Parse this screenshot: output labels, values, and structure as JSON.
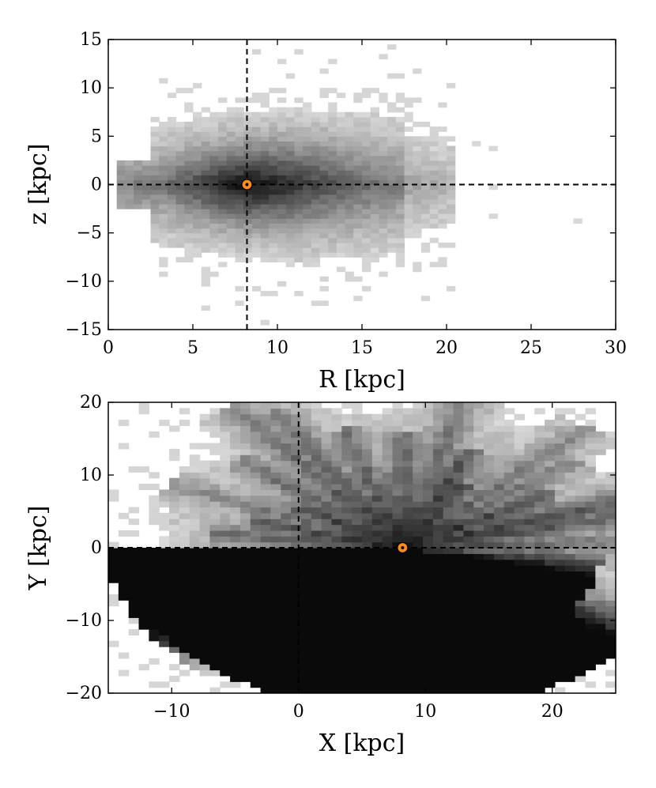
{
  "chart_data": [
    {
      "type": "heatmap",
      "title": "",
      "xlabel": "R [kpc]",
      "ylabel": "z [kpc]",
      "xlim": [
        0,
        30
      ],
      "ylim": [
        -15,
        15
      ],
      "xticks": [
        "0",
        "5",
        "10",
        "15",
        "20",
        "25",
        "30"
      ],
      "yticks": [
        "15",
        "10",
        "5",
        "0",
        "−5",
        "−10",
        "−15"
      ],
      "xtick_values": [
        0,
        5,
        10,
        15,
        20,
        25,
        30
      ],
      "ytick_values": [
        15,
        10,
        5,
        0,
        -5,
        -10,
        -15
      ],
      "grid": false,
      "colormap": "greys (log density)",
      "bin_size_kpc": 0.5,
      "reference_lines": [
        {
          "orientation": "vertical",
          "value": 8.2,
          "style": "dashed"
        },
        {
          "orientation": "horizontal",
          "value": 0,
          "style": "dashed"
        }
      ],
      "sun_marker": {
        "x": 8.2,
        "y": 0,
        "symbol": "⊙",
        "color": "#ff8c1a"
      },
      "density_model": {
        "description": "thick stellar disk, densest near the Sun, extends R≈0.5–20 kpc, |z| up to ≈15 kpc, flaring with R",
        "center": [
          8.2,
          0
        ],
        "x_extent": [
          0.5,
          20
        ]
      }
    },
    {
      "type": "heatmap",
      "title": "",
      "xlabel": "X [kpc]",
      "ylabel": "Y [kpc]",
      "xlim": [
        -15,
        25
      ],
      "ylim": [
        -20,
        20
      ],
      "xticks": [
        "−10",
        "0",
        "10",
        "20"
      ],
      "yticks": [
        "20",
        "10",
        "0",
        "−10",
        "−20"
      ],
      "xtick_values": [
        -10,
        0,
        10,
        20
      ],
      "ytick_values": [
        20,
        10,
        0,
        -10,
        -20
      ],
      "grid": false,
      "colormap": "greys (log density)",
      "bin_size_kpc": 0.8,
      "reference_lines": [
        {
          "orientation": "vertical",
          "value": 0,
          "style": "dashed"
        },
        {
          "orientation": "horizontal",
          "value": 0,
          "style": "dashed"
        }
      ],
      "sun_marker": {
        "x": 8.2,
        "y": 0,
        "symbol": "⊙",
        "color": "#ff8c1a"
      },
      "density_model": {
        "description": "star-shaped distribution of sight-line streaks radiating from the Sun position, brighter toward positive X",
        "center": [
          8.2,
          0
        ],
        "x_extent": [
          -14,
          24
        ]
      }
    }
  ]
}
